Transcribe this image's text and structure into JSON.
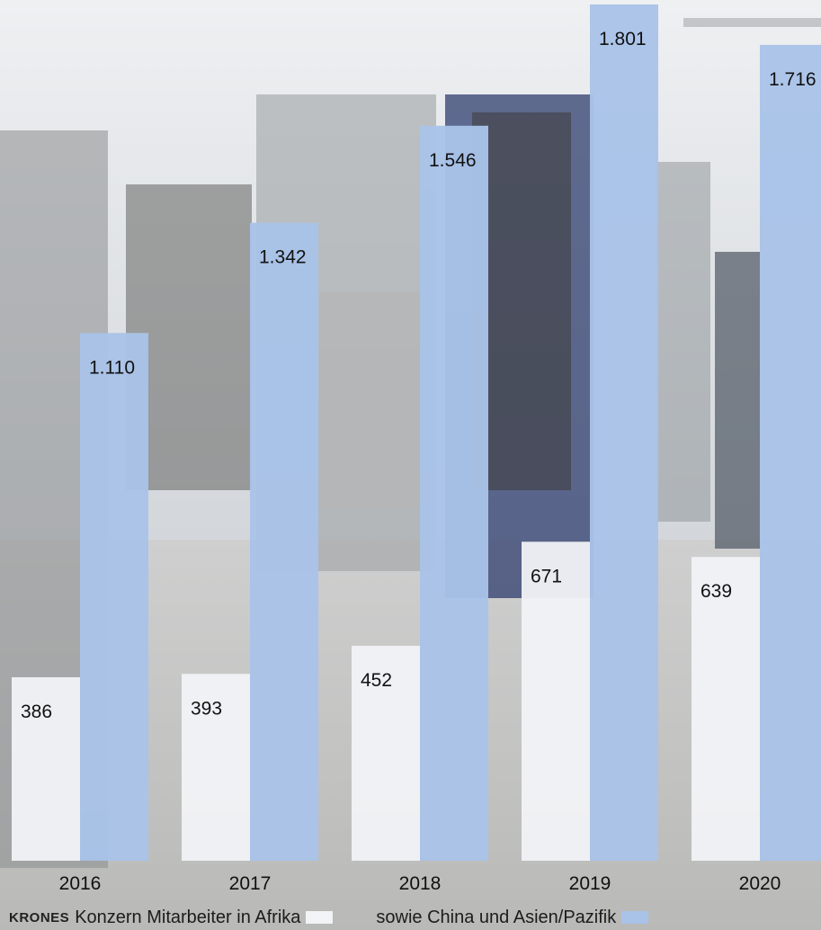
{
  "chart_data": {
    "type": "bar",
    "categories": [
      "2016",
      "2017",
      "2018",
      "2019",
      "2020"
    ],
    "series": [
      {
        "name": "KRONES Konzern Mitarbeiter in Afrika",
        "values": [
          386,
          393,
          452,
          671,
          639
        ],
        "labels": [
          "386",
          "393",
          "452",
          "671",
          "639"
        ],
        "color": "#f2f3f6"
      },
      {
        "name": "sowie China und Asien/Pazifik",
        "values": [
          1110,
          1342,
          1546,
          1801,
          1716
        ],
        "labels": [
          "1.110",
          "1.342",
          "1.546",
          "1.801",
          "1.716"
        ],
        "color": "#a9c3e8"
      }
    ],
    "ylim": [
      0,
      1801
    ],
    "grid": false,
    "legend_position": "bottom-left"
  },
  "legend": {
    "brand": "KRONES",
    "series1_text": "Konzern Mitarbeiter in Afrika",
    "series2_text": "sowie China und Asien/Pazifik"
  },
  "colors": {
    "afrika": "#f2f3f6",
    "asien": "#a9c3e8"
  }
}
